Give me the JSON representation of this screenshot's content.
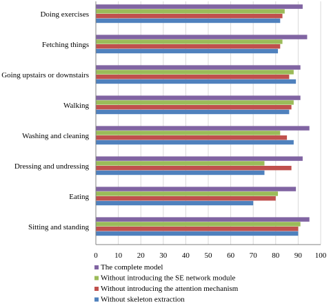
{
  "chart_data": {
    "type": "bar",
    "orientation": "horizontal",
    "categories": [
      "Doing exercises",
      "Fetching things",
      "Going upstairs or downstairs",
      "Walking",
      "Washing and cleaning",
      "Dressing and undressing",
      "Eating",
      "Sitting and standing"
    ],
    "series": [
      {
        "name": "The complete model",
        "color": "#8064a2",
        "values": [
          92,
          94,
          91,
          91,
          95,
          92,
          89,
          95
        ]
      },
      {
        "name": "Without introducing the SE network module",
        "color": "#9bbb59",
        "values": [
          84,
          83,
          88,
          88,
          82,
          75,
          81,
          91
        ]
      },
      {
        "name": "Without introducing the attention mechanism",
        "color": "#c0504d",
        "values": [
          83,
          82,
          86,
          87,
          85,
          87,
          80,
          90
        ]
      },
      {
        "name": "Without skeleton extraction",
        "color": "#4f81bd",
        "values": [
          82,
          81,
          89,
          86,
          88,
          75,
          70,
          90
        ]
      }
    ],
    "xlim": [
      0,
      100
    ],
    "xticks": [
      0,
      10,
      20,
      30,
      40,
      50,
      60,
      70,
      80,
      90,
      100
    ],
    "title": "",
    "xlabel": "",
    "ylabel": "",
    "grid": true,
    "legend_position": "bottom-left"
  }
}
